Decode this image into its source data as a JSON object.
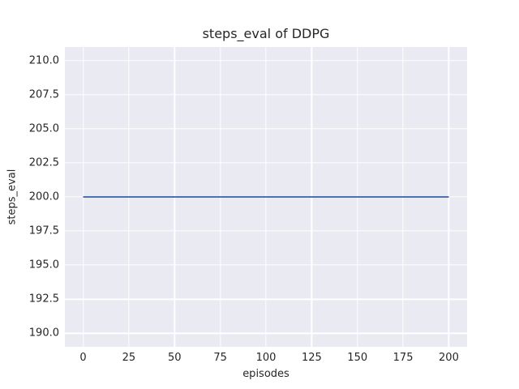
{
  "figure": {
    "title": "steps_eval of DDPG",
    "xlabel": "episodes",
    "ylabel": "steps_eval"
  },
  "chart_data": {
    "type": "line",
    "title": "steps_eval of DDPG",
    "xlabel": "episodes",
    "ylabel": "steps_eval",
    "xlim": [
      -10,
      210
    ],
    "ylim": [
      189,
      211
    ],
    "xticks": [
      {
        "value": 0,
        "label": "0"
      },
      {
        "value": 25,
        "label": "25"
      },
      {
        "value": 50,
        "label": "50"
      },
      {
        "value": 75,
        "label": "75"
      },
      {
        "value": 100,
        "label": "100"
      },
      {
        "value": 125,
        "label": "125"
      },
      {
        "value": 150,
        "label": "150"
      },
      {
        "value": 175,
        "label": "175"
      },
      {
        "value": 200,
        "label": "200"
      }
    ],
    "yticks": [
      {
        "value": 190.0,
        "label": "190.0"
      },
      {
        "value": 192.5,
        "label": "192.5"
      },
      {
        "value": 195.0,
        "label": "195.0"
      },
      {
        "value": 197.5,
        "label": "197.5"
      },
      {
        "value": 200.0,
        "label": "200.0"
      },
      {
        "value": 202.5,
        "label": "202.5"
      },
      {
        "value": 205.0,
        "label": "205.0"
      },
      {
        "value": 207.5,
        "label": "207.5"
      },
      {
        "value": 210.0,
        "label": "210.0"
      }
    ],
    "grid": true,
    "legend": false,
    "plot_background": "#EAEAF2",
    "grid_color": "#FFFFFF",
    "text_color": "#262626",
    "series": [
      {
        "name": "steps_eval",
        "color": "#4C72B0",
        "linewidth": 2,
        "x": [
          0,
          200
        ],
        "y": [
          200,
          200
        ]
      }
    ]
  }
}
